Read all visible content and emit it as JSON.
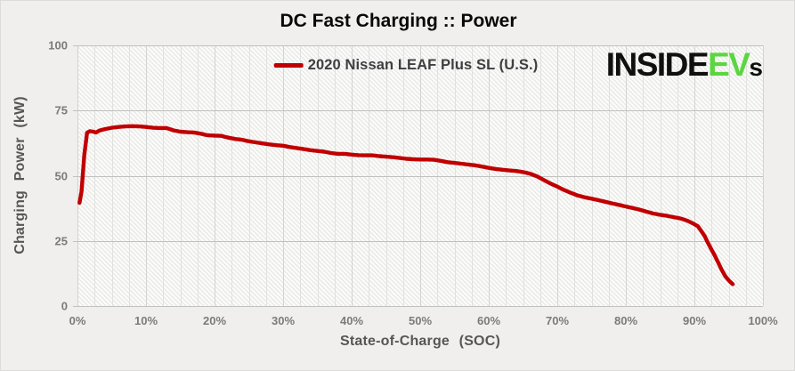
{
  "page": {
    "background": "#f0efed"
  },
  "chart_data": {
    "type": "line",
    "title": "DC Fast Charging :: Power",
    "xlabel": "State-of-Charge  (SOC)",
    "ylabel": "Charging  Power  (kW)",
    "xlim": [
      0,
      100
    ],
    "ylim": [
      0,
      100
    ],
    "grid": true,
    "legend_position": "top-center",
    "x_ticks": [
      {
        "value": 0,
        "label": "0%"
      },
      {
        "value": 10,
        "label": "10%"
      },
      {
        "value": 20,
        "label": "20%"
      },
      {
        "value": 30,
        "label": "30%"
      },
      {
        "value": 40,
        "label": "40%"
      },
      {
        "value": 50,
        "label": "50%"
      },
      {
        "value": 60,
        "label": "60%"
      },
      {
        "value": 70,
        "label": "70%"
      },
      {
        "value": 80,
        "label": "80%"
      },
      {
        "value": 90,
        "label": "90%"
      },
      {
        "value": 100,
        "label": "100%"
      }
    ],
    "y_ticks": [
      {
        "value": 0,
        "label": "0"
      },
      {
        "value": 25,
        "label": "25"
      },
      {
        "value": 50,
        "label": "50"
      },
      {
        "value": 75,
        "label": "75"
      },
      {
        "value": 100,
        "label": "100"
      }
    ],
    "minor_x_grid_step": 2.5,
    "series": [
      {
        "name": "2020 Nissan LEAF Plus SL (U.S.)",
        "color": "#c00000",
        "units": {
          "x": "% SOC",
          "y": "kW"
        },
        "points": [
          [
            0.3,
            39.6
          ],
          [
            0.6,
            44
          ],
          [
            1.0,
            58
          ],
          [
            1.4,
            66.5
          ],
          [
            1.8,
            67.1
          ],
          [
            2.3,
            66.9
          ],
          [
            2.7,
            66.6
          ],
          [
            3.2,
            67.3
          ],
          [
            4,
            67.9
          ],
          [
            5,
            68.4
          ],
          [
            6,
            68.7
          ],
          [
            7,
            68.9
          ],
          [
            8,
            69.0
          ],
          [
            9,
            68.9
          ],
          [
            10,
            68.7
          ],
          [
            11,
            68.4
          ],
          [
            12,
            68.3
          ],
          [
            13,
            68.3
          ],
          [
            14,
            67.4
          ],
          [
            15,
            66.9
          ],
          [
            16,
            66.7
          ],
          [
            17,
            66.6
          ],
          [
            18,
            66.1
          ],
          [
            19,
            65.5
          ],
          [
            20,
            65.4
          ],
          [
            21,
            65.3
          ],
          [
            22,
            64.6
          ],
          [
            23,
            64.1
          ],
          [
            24,
            63.8
          ],
          [
            25,
            63.2
          ],
          [
            26,
            62.8
          ],
          [
            27,
            62.4
          ],
          [
            28,
            62.0
          ],
          [
            29,
            61.7
          ],
          [
            30,
            61.5
          ],
          [
            31,
            61.0
          ],
          [
            32,
            60.6
          ],
          [
            33,
            60.2
          ],
          [
            34,
            59.8
          ],
          [
            35,
            59.5
          ],
          [
            36,
            59.2
          ],
          [
            37,
            58.7
          ],
          [
            38,
            58.4
          ],
          [
            39,
            58.4
          ],
          [
            40,
            58.1
          ],
          [
            41,
            57.9
          ],
          [
            42,
            57.8
          ],
          [
            43,
            57.8
          ],
          [
            44,
            57.5
          ],
          [
            45,
            57.3
          ],
          [
            46,
            57.1
          ],
          [
            47,
            56.8
          ],
          [
            48,
            56.5
          ],
          [
            49,
            56.3
          ],
          [
            50,
            56.2
          ],
          [
            51,
            56.2
          ],
          [
            52,
            56.1
          ],
          [
            53,
            55.7
          ],
          [
            54,
            55.2
          ],
          [
            55,
            54.9
          ],
          [
            56,
            54.6
          ],
          [
            57,
            54.3
          ],
          [
            58,
            54.0
          ],
          [
            59,
            53.5
          ],
          [
            60,
            53.0
          ],
          [
            61,
            52.6
          ],
          [
            62,
            52.3
          ],
          [
            63,
            52.0
          ],
          [
            64,
            51.8
          ],
          [
            65,
            51.4
          ],
          [
            66,
            50.8
          ],
          [
            67,
            49.8
          ],
          [
            68,
            48.4
          ],
          [
            69,
            47.0
          ],
          [
            70,
            45.8
          ],
          [
            71,
            44.5
          ],
          [
            72,
            43.4
          ],
          [
            73,
            42.4
          ],
          [
            74,
            41.7
          ],
          [
            75,
            41.2
          ],
          [
            76,
            40.6
          ],
          [
            77,
            40.0
          ],
          [
            78,
            39.4
          ],
          [
            79,
            38.8
          ],
          [
            80,
            38.2
          ],
          [
            81,
            37.6
          ],
          [
            82,
            37.0
          ],
          [
            83,
            36.2
          ],
          [
            84,
            35.5
          ],
          [
            85,
            35.0
          ],
          [
            86,
            34.6
          ],
          [
            87,
            34.1
          ],
          [
            88,
            33.6
          ],
          [
            89,
            32.7
          ],
          [
            90,
            31.4
          ],
          [
            90.5,
            30.6
          ],
          [
            91,
            28.8
          ],
          [
            91.5,
            26.8
          ],
          [
            92,
            24.1
          ],
          [
            92.5,
            21.6
          ],
          [
            93,
            19.2
          ],
          [
            93.5,
            16.5
          ],
          [
            94,
            13.8
          ],
          [
            94.5,
            11.5
          ],
          [
            95,
            9.9
          ],
          [
            95.3,
            9.1
          ],
          [
            95.6,
            8.4
          ]
        ]
      }
    ]
  },
  "branding": {
    "logo_black_prefix": "INSIDE",
    "logo_green": "EV",
    "logo_black_suffix": "s",
    "green_color": "#5bd640",
    "black_color": "#101010"
  }
}
